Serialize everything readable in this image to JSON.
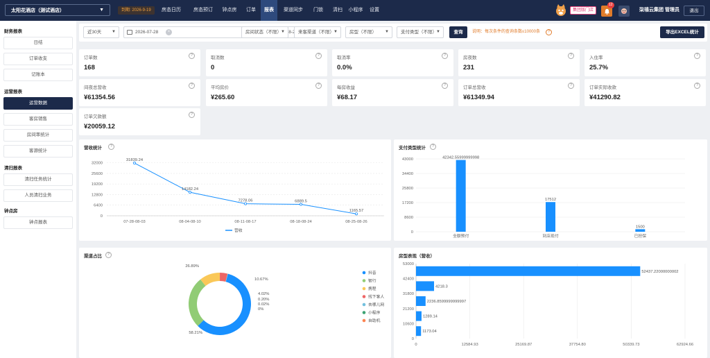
{
  "header": {
    "hotel_name": "太阳花酒店（测试酒店）",
    "expire_label": "到期: 2026-9-19",
    "nav": [
      "房态日历",
      "房态预订",
      "钟点房",
      "订单",
      "报表",
      "渠道同步",
      "门锁",
      "清扫",
      "小程序",
      "设置"
    ],
    "active_nav": "报表",
    "group_button": "集团版门店",
    "notification_count": "12",
    "user_label": "柒禧云集团 管理员",
    "logout": "退出"
  },
  "sidebar": {
    "groups": [
      {
        "title": "财务报表",
        "items": [
          "日结",
          "订单收支",
          "记账本"
        ]
      },
      {
        "title": "运营报表",
        "items": [
          "运营数据",
          "客房销售",
          "房间率统计",
          "客源统计"
        ]
      },
      {
        "title": "清扫报表",
        "items": [
          "清扫任务统计",
          "人员清扫业务"
        ]
      },
      {
        "title": "钟点房",
        "items": [
          "钟点报表"
        ]
      }
    ],
    "active_item": "运营数据"
  },
  "filters": {
    "range": "近30天",
    "start_date": "2026-07-28",
    "to": "至",
    "end_date": "2026-08-26",
    "room_status": "房间状态（不限）",
    "channel": "来客渠道（不限）",
    "room_type": "房型（不限）",
    "payment": "支付类型（不限）",
    "query": "查询",
    "hint": "说明：每次条件的查询条数≤10000条",
    "export": "导出EXCEL统计"
  },
  "stats": [
    {
      "label": "订单数",
      "value": "168"
    },
    {
      "label": "取消数",
      "value": "0"
    },
    {
      "label": "取消率",
      "value": "0.0%"
    },
    {
      "label": "房夜数",
      "value": "231"
    },
    {
      "label": "入住率",
      "value": "25.7%"
    },
    {
      "label": "间夜总营收",
      "value": "¥61354.56"
    },
    {
      "label": "平均房价",
      "value": "¥265.60"
    },
    {
      "label": "每房收益",
      "value": "¥68.17"
    },
    {
      "label": "订单总营收",
      "value": "¥61349.94"
    },
    {
      "label": "订单实际收款",
      "value": "¥41290.82"
    },
    {
      "label": "订单欠款额",
      "value": "¥20059.12"
    }
  ],
  "chart_data": [
    {
      "type": "line",
      "title": "营收统计",
      "categories": [
        "07-28-08-03",
        "08-04-08-10",
        "08-11-08-17",
        "08-18-08-24",
        "08-25-08-26"
      ],
      "series": [
        {
          "name": "营收",
          "values": [
            31839.24,
            14182.24,
            7278.06,
            6889.5,
            1165.57
          ]
        }
      ],
      "value_labels": [
        "31839.24",
        "14182.24",
        "7278.06",
        "6889.5",
        "1165.57"
      ],
      "y_ticks": [
        0,
        6400,
        12800,
        19200,
        25600,
        32000
      ],
      "ylim": [
        0,
        35200
      ],
      "grid": true,
      "legend": "bottom",
      "color": "#1890ff"
    },
    {
      "type": "bar",
      "title": "支付类型统计",
      "categories": [
        "全额预付",
        "到店现付",
        "已担保"
      ],
      "values": [
        42342.55999999998,
        17512,
        1500
      ],
      "value_labels": [
        "42342.55999999998",
        "17512",
        "1500"
      ],
      "y_ticks": [
        0,
        8600,
        17200,
        25800,
        34400,
        43000
      ],
      "ylim": [
        0,
        43000
      ],
      "grid": true,
      "color": "#1890ff"
    },
    {
      "type": "pie",
      "title": "渠道占比",
      "categories": [
        "抖音",
        "智行",
        "携程",
        "线下客人",
        "去哪儿网",
        "小程序",
        "自助机"
      ],
      "values": [
        58.21,
        26.89,
        10.67,
        4.02,
        0.2,
        0.02,
        0
      ],
      "value_labels": [
        "58.21%",
        "26.89%",
        "10.67%",
        "4.02%",
        "0.20%",
        "0.02%",
        "0%"
      ],
      "colors": [
        "#1890ff",
        "#91cc75",
        "#fac858",
        "#ee6666",
        "#73c0de",
        "#3ba272",
        "#fc8452"
      ],
      "legend": "right"
    },
    {
      "type": "bar",
      "orientation": "horizontal",
      "title": "房型表现（营收）",
      "categories": [
        "",
        "",
        "",
        "",
        ""
      ],
      "values": [
        52437.22000000002,
        4218.3,
        2236.8599999999997,
        1289.14,
        1173.04
      ],
      "value_labels": [
        "52437.22000000002",
        "4218.3",
        "2236.8599999999997",
        "1289.14",
        "1173.04"
      ],
      "x_ticks": [
        "0",
        "12584.93",
        "25169.87",
        "37754.80",
        "50339.73",
        "62924.66"
      ],
      "xlim": [
        0,
        62924.66
      ],
      "y_ticks": [
        "0",
        "10600",
        "21200",
        "31800",
        "42400",
        "53000"
      ],
      "grid": true,
      "color": "#1890ff"
    }
  ]
}
